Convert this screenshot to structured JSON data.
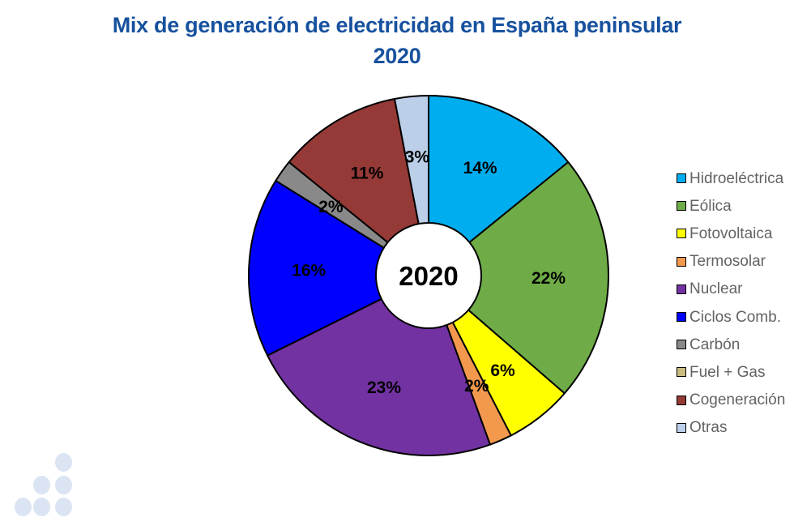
{
  "page": {
    "background": "#FFFFFF"
  },
  "title": {
    "line1": "Mix de generación de electricidad en España peninsular",
    "line2": "2020",
    "color": "#17519E"
  },
  "chart_data": {
    "type": "pie",
    "subtype": "donut",
    "title": "Mix de generación de electricidad en España peninsular 2020",
    "center_label": "2020",
    "units": "percent",
    "start_angle_deg": 0,
    "direction": "clockwise",
    "legend_position": "right",
    "slice_outline_color": "#000000",
    "data_label_color": "#000000",
    "series": [
      {
        "name": "Hidroeléctrica",
        "value_pct": 14,
        "data_label": "14%",
        "color": "#00ADEF"
      },
      {
        "name": "Eólica",
        "value_pct": 22,
        "data_label": "22%",
        "color": "#6FAC47"
      },
      {
        "name": "Fotovoltaica",
        "value_pct": 6,
        "data_label": "6%",
        "color": "#FFFF00"
      },
      {
        "name": "Termosolar",
        "value_pct": 2,
        "data_label": "2%",
        "color": "#F2994E"
      },
      {
        "name": "Nuclear",
        "value_pct": 23,
        "data_label": "23%",
        "color": "#7232A2"
      },
      {
        "name": "Ciclos Comb.",
        "value_pct": 16,
        "data_label": "16%",
        "color": "#0000FE"
      },
      {
        "name": "Carbón",
        "value_pct": 2,
        "data_label": "2%",
        "color": "#898989"
      },
      {
        "name": "Fuel + Gas",
        "value_pct": 0,
        "data_label": "",
        "color": "#C9BA82"
      },
      {
        "name": "Cogeneración",
        "value_pct": 11,
        "data_label": "11%",
        "color": "#953A37"
      },
      {
        "name": "Otras",
        "value_pct": 3,
        "data_label": "3%",
        "color": "#BCCFE8"
      }
    ]
  },
  "legend": {
    "text_color": "#636363"
  },
  "decoration": {
    "dots_color": "#DAE4F2",
    "dots_count": 6
  }
}
